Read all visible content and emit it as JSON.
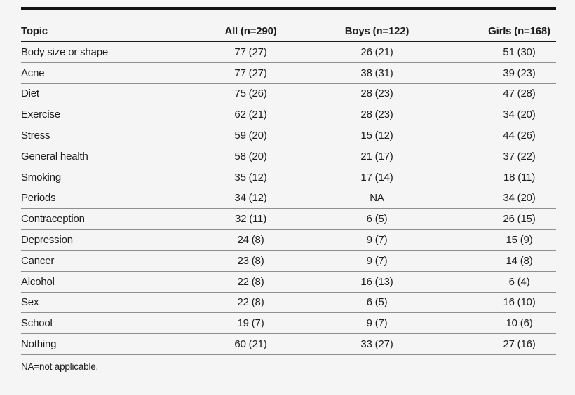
{
  "colors": {
    "background": "#f5f5f5",
    "text": "#1d1d1d",
    "top_rule": "#121212",
    "header_rule": "#1a1a1a",
    "row_rule": "#8f8f8f"
  },
  "table": {
    "columns": [
      "Topic",
      "All (n=290)",
      "Boys (n=122)",
      "Girls (n=168)"
    ],
    "rows": [
      {
        "topic": "Body size or shape",
        "all": "77 (27)",
        "boys": "26 (21)",
        "girls": "51 (30)"
      },
      {
        "topic": "Acne",
        "all": "77 (27)",
        "boys": "38 (31)",
        "girls": "39 (23)"
      },
      {
        "topic": "Diet",
        "all": "75 (26)",
        "boys": "28 (23)",
        "girls": "47 (28)"
      },
      {
        "topic": "Exercise",
        "all": "62 (21)",
        "boys": "28 (23)",
        "girls": "34 (20)"
      },
      {
        "topic": "Stress",
        "all": "59 (20)",
        "boys": "15 (12)",
        "girls": "44 (26)"
      },
      {
        "topic": "General health",
        "all": "58 (20)",
        "boys": "21 (17)",
        "girls": "37 (22)"
      },
      {
        "topic": "Smoking",
        "all": "35 (12)",
        "boys": "17 (14)",
        "girls": "18 (11)"
      },
      {
        "topic": "Periods",
        "all": "34 (12)",
        "boys": "NA",
        "girls": "34 (20)"
      },
      {
        "topic": "Contraception",
        "all": "32 (11)",
        "boys": "6 (5)",
        "girls": "26 (15)"
      },
      {
        "topic": "Depression",
        "all": "24 (8)",
        "boys": "9 (7)",
        "girls": "15 (9)"
      },
      {
        "topic": "Cancer",
        "all": "23 (8)",
        "boys": "9 (7)",
        "girls": "14 (8)"
      },
      {
        "topic": "Alcohol",
        "all": "22 (8)",
        "boys": "16 (13)",
        "girls": "6 (4)"
      },
      {
        "topic": "Sex",
        "all": "22 (8)",
        "boys": "6 (5)",
        "girls": "16 (10)"
      },
      {
        "topic": "School",
        "all": "19 (7)",
        "boys": "9 (7)",
        "girls": "10 (6)"
      },
      {
        "topic": "Nothing",
        "all": "60 (21)",
        "boys": "33 (27)",
        "girls": "27 (16)"
      }
    ],
    "footnote": "NA=not applicable."
  }
}
